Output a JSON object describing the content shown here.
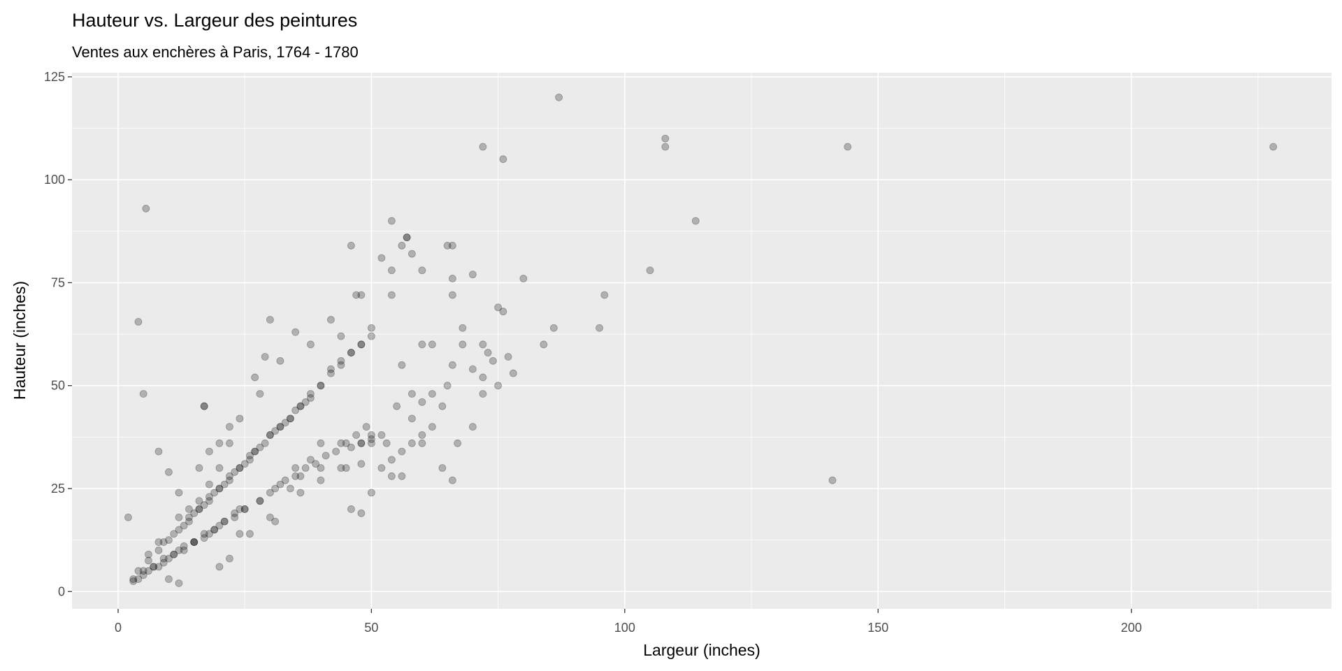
{
  "chart_data": {
    "type": "scatter",
    "title": "Hauteur vs. Largeur des peintures",
    "subtitle": "Ventes aux enchères à Paris, 1764 - 1780",
    "x_label": "Largeur (inches)",
    "y_label": "Hauteur (inches)",
    "xlim": [
      -9.1,
      239.5
    ],
    "ylim": [
      -4.2,
      126
    ],
    "xticks": [
      0,
      50,
      100,
      150,
      200
    ],
    "yticks": [
      0,
      25,
      50,
      75,
      100,
      125
    ],
    "grid": true,
    "color": "#000000",
    "x": [
      87,
      72,
      76,
      108,
      108,
      144,
      228,
      114,
      105,
      5.5,
      4,
      5,
      17,
      17,
      141,
      2,
      8,
      96,
      95,
      86,
      84,
      80,
      78,
      77,
      75,
      70,
      66,
      65,
      57,
      57,
      54,
      54,
      54,
      52,
      46,
      50,
      48,
      47,
      48,
      60,
      58,
      56,
      66,
      66,
      68,
      68,
      72,
      73,
      72,
      75,
      66,
      60,
      58,
      55,
      50,
      48,
      50,
      48,
      46,
      54,
      56,
      45,
      40,
      36,
      34,
      30,
      28,
      24,
      20,
      18,
      15,
      12,
      10,
      8,
      6,
      4,
      3,
      4,
      6,
      8,
      10,
      12,
      14,
      16,
      18,
      20,
      22,
      24,
      26,
      27,
      30,
      32,
      34,
      36,
      38,
      40,
      42,
      44,
      46,
      29,
      27,
      30,
      28,
      32,
      35,
      38,
      42,
      44,
      60,
      62,
      56,
      58,
      60,
      62,
      64,
      65,
      66,
      70,
      72,
      74,
      76,
      70,
      67,
      64,
      52,
      53,
      50,
      44,
      40,
      38,
      35,
      32,
      30,
      31,
      26,
      24,
      22,
      20,
      10,
      12,
      10,
      12,
      16,
      18,
      20,
      22,
      24,
      22,
      20,
      18,
      16,
      14,
      12,
      8,
      6,
      5,
      7,
      9,
      11,
      13,
      15,
      17,
      19,
      21,
      23,
      25,
      28,
      31,
      33,
      35,
      37,
      39,
      41,
      43,
      45,
      47,
      49,
      14,
      16,
      18,
      20,
      22,
      24,
      26,
      28,
      30,
      32,
      34,
      36,
      38,
      40,
      42,
      44,
      46,
      48,
      50,
      9,
      11,
      13,
      15,
      17,
      19,
      21,
      23,
      25,
      27,
      29,
      31,
      33,
      35,
      37,
      48,
      50,
      48,
      46,
      52,
      54,
      56,
      58,
      60,
      62,
      36,
      40,
      44,
      3,
      5,
      7,
      9,
      11,
      13,
      15,
      17,
      19,
      21,
      23,
      25
    ],
    "values": [
      120,
      108,
      105,
      110,
      108,
      108,
      108,
      90,
      78,
      93,
      65.5,
      48,
      45,
      45,
      27,
      18,
      34,
      72,
      64,
      64,
      60,
      76,
      53,
      57,
      69,
      77,
      84,
      84,
      86,
      86,
      90,
      72,
      78,
      81,
      84,
      64,
      60,
      72,
      72,
      78,
      82,
      84,
      76,
      72,
      64,
      60,
      60,
      58,
      48,
      50,
      27,
      36,
      42,
      45,
      36,
      36,
      24,
      19,
      20,
      28,
      28,
      30,
      30,
      28,
      25,
      24,
      22,
      20,
      16,
      14,
      12,
      10,
      8,
      6,
      5,
      3,
      2.5,
      5,
      7.5,
      10,
      12.5,
      15,
      17,
      20,
      22,
      25,
      27,
      30,
      32,
      34,
      38,
      40,
      42,
      45,
      48,
      50,
      54,
      56,
      58,
      57,
      52,
      66,
      48,
      56,
      63,
      60,
      66,
      62,
      60,
      60,
      55,
      48,
      46,
      48,
      45,
      50,
      55,
      54,
      52,
      56,
      68,
      40,
      36,
      30,
      30,
      36,
      38,
      36,
      36,
      32,
      30,
      26,
      18,
      17,
      14,
      14,
      8,
      6,
      3,
      2,
      29,
      24,
      30,
      34,
      36,
      40,
      42,
      36,
      30,
      26,
      22,
      20,
      18,
      12,
      9,
      4,
      6,
      7,
      9,
      10,
      12,
      13,
      15,
      17,
      18,
      20,
      22,
      25,
      27,
      28,
      30,
      31,
      33,
      34,
      36,
      38,
      40,
      18,
      20,
      23,
      25,
      28,
      30,
      33,
      35,
      38,
      40,
      42,
      45,
      47,
      50,
      53,
      55,
      58,
      60,
      62,
      12,
      14,
      16,
      19,
      21,
      24,
      26,
      29,
      31,
      34,
      36,
      39,
      41,
      44,
      46,
      36,
      37,
      31,
      35,
      38,
      32,
      34,
      36,
      38,
      40,
      24,
      27,
      30,
      3,
      5,
      6,
      8,
      9,
      11,
      12,
      14,
      15,
      17,
      19,
      20
    ]
  }
}
